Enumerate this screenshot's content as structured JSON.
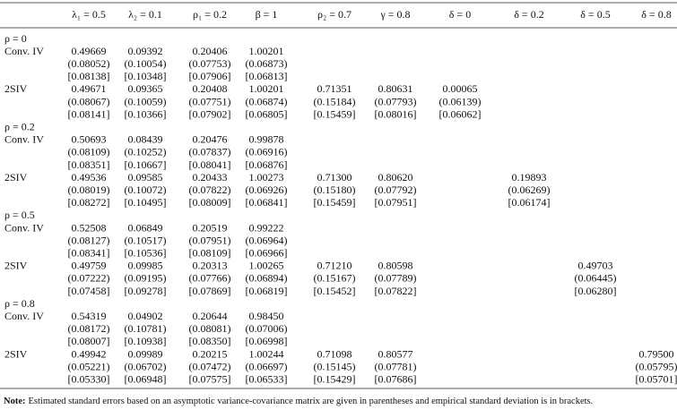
{
  "table": {
    "columns": [
      "λ₁ = 0.5",
      "λ₂ = 0.1",
      "ρ₁ = 0.2",
      "β = 1",
      "ρ₂ = 0.7",
      "γ = 0.8",
      "δ = 0",
      "δ = 0.2",
      "δ = 0.5",
      "δ = 0.8"
    ],
    "groups": [
      {
        "label": "ρ = 0",
        "rows": [
          {
            "label": "Conv. IV",
            "lines": [
              [
                "0.49669",
                "0.09392",
                "0.20406",
                "1.00201",
                null,
                null,
                null,
                null,
                null,
                null
              ],
              [
                "(0.08052)",
                "(0.10054)",
                "(0.07753)",
                "(0.06873)",
                null,
                null,
                null,
                null,
                null,
                null
              ],
              [
                "[0.08138]",
                "[0.10348]",
                "[0.07906]",
                "[0.06813]",
                null,
                null,
                null,
                null,
                null,
                null
              ]
            ]
          },
          {
            "label": "2SIV",
            "lines": [
              [
                "0.49671",
                "0.09365",
                "0.20408",
                "1.00201",
                "0.71351",
                "0.80631",
                "0.00065",
                null,
                null,
                null
              ],
              [
                "(0.08067)",
                "(0.10059)",
                "(0.07751)",
                "(0.06874)",
                "(0.15184)",
                "(0.07793)",
                "(0.06139)",
                null,
                null,
                null
              ],
              [
                "[0.08141]",
                "[0.10366]",
                "[0.07902]",
                "[0.06805]",
                "[0.15459]",
                "[0.08016]",
                "[0.06062]",
                null,
                null,
                null
              ]
            ]
          }
        ]
      },
      {
        "label": "ρ = 0.2",
        "rows": [
          {
            "label": "Conv. IV",
            "lines": [
              [
                "0.50693",
                "0.08439",
                "0.20476",
                "0.99878",
                null,
                null,
                null,
                null,
                null,
                null
              ],
              [
                "(0.08109)",
                "(0.10252)",
                "(0.07837)",
                "(0.06916)",
                null,
                null,
                null,
                null,
                null,
                null
              ],
              [
                "[0.08351]",
                "[0.10667]",
                "[0.08041]",
                "[0.06876]",
                null,
                null,
                null,
                null,
                null,
                null
              ]
            ]
          },
          {
            "label": "2SIV",
            "lines": [
              [
                "0.49536",
                "0.09585",
                "0.20433",
                "1.00273",
                "0.71300",
                "0.80620",
                null,
                "0.19893",
                null,
                null
              ],
              [
                "(0.08019)",
                "(0.10072)",
                "(0.07822)",
                "(0.06926)",
                "(0.15180)",
                "(0.07792)",
                null,
                "(0.06269)",
                null,
                null
              ],
              [
                "[0.08272]",
                "[0.10495]",
                "[0.08009]",
                "[0.06841]",
                "[0.15459]",
                "[0.07951]",
                null,
                "[0.06174]",
                null,
                null
              ]
            ]
          }
        ]
      },
      {
        "label": "ρ = 0.5",
        "rows": [
          {
            "label": "Conv. IV",
            "lines": [
              [
                "0.52508",
                "0.06849",
                "0.20519",
                "0.99222",
                null,
                null,
                null,
                null,
                null,
                null
              ],
              [
                "(0.08127)",
                "(0.10517)",
                "(0.07951)",
                "(0.06964)",
                null,
                null,
                null,
                null,
                null,
                null
              ],
              [
                "[0.08341]",
                "[0.10536]",
                "[0.08109]",
                "[0.06966]",
                null,
                null,
                null,
                null,
                null,
                null
              ]
            ]
          },
          {
            "label": "2SIV",
            "lines": [
              [
                "0.49759",
                "0.09985",
                "0.20313",
                "1.00265",
                "0.71210",
                "0.80598",
                null,
                null,
                "0.49703",
                null
              ],
              [
                "(0.07222)",
                "(0.09195)",
                "(0.07766)",
                "(0.06894)",
                "(0.15167)",
                "(0.07789)",
                null,
                null,
                "(0.06445)",
                null
              ],
              [
                "[0.07458]",
                "[0.09278]",
                "[0.07869]",
                "[0.06819]",
                "[0.15452]",
                "[0.07822]",
                null,
                null,
                "[0.06280]",
                null
              ]
            ]
          }
        ]
      },
      {
        "label": "ρ = 0.8",
        "rows": [
          {
            "label": "Conv. IV",
            "lines": [
              [
                "0.54319",
                "0.04902",
                "0.20644",
                "0.98450",
                null,
                null,
                null,
                null,
                null,
                null
              ],
              [
                "(0.08172)",
                "(0.10781)",
                "(0.08081)",
                "(0.07006)",
                null,
                null,
                null,
                null,
                null,
                null
              ],
              [
                "[0.08007]",
                "[0.10938]",
                "[0.08350]",
                "[0.06998]",
                null,
                null,
                null,
                null,
                null,
                null
              ]
            ]
          },
          {
            "label": "2SIV",
            "lines": [
              [
                "0.49942",
                "0.09989",
                "0.20215",
                "1.00244",
                "0.71098",
                "0.80577",
                null,
                null,
                null,
                "0.79500"
              ],
              [
                "(0.05221)",
                "(0.06702)",
                "(0.07472)",
                "(0.06697)",
                "(0.15145)",
                "(0.07781)",
                null,
                null,
                null,
                "(0.05795)"
              ],
              [
                "[0.05330]",
                "[0.06948]",
                "[0.07575]",
                "[0.06533]",
                "[0.15429]",
                "[0.07686]",
                null,
                null,
                null,
                "[0.05701]"
              ]
            ]
          }
        ]
      }
    ]
  },
  "note": {
    "label": "Note:",
    "text": "Estimated standard errors based on an asymptotic variance-covariance matrix are given in parentheses and empirical standard deviation is in brackets."
  }
}
